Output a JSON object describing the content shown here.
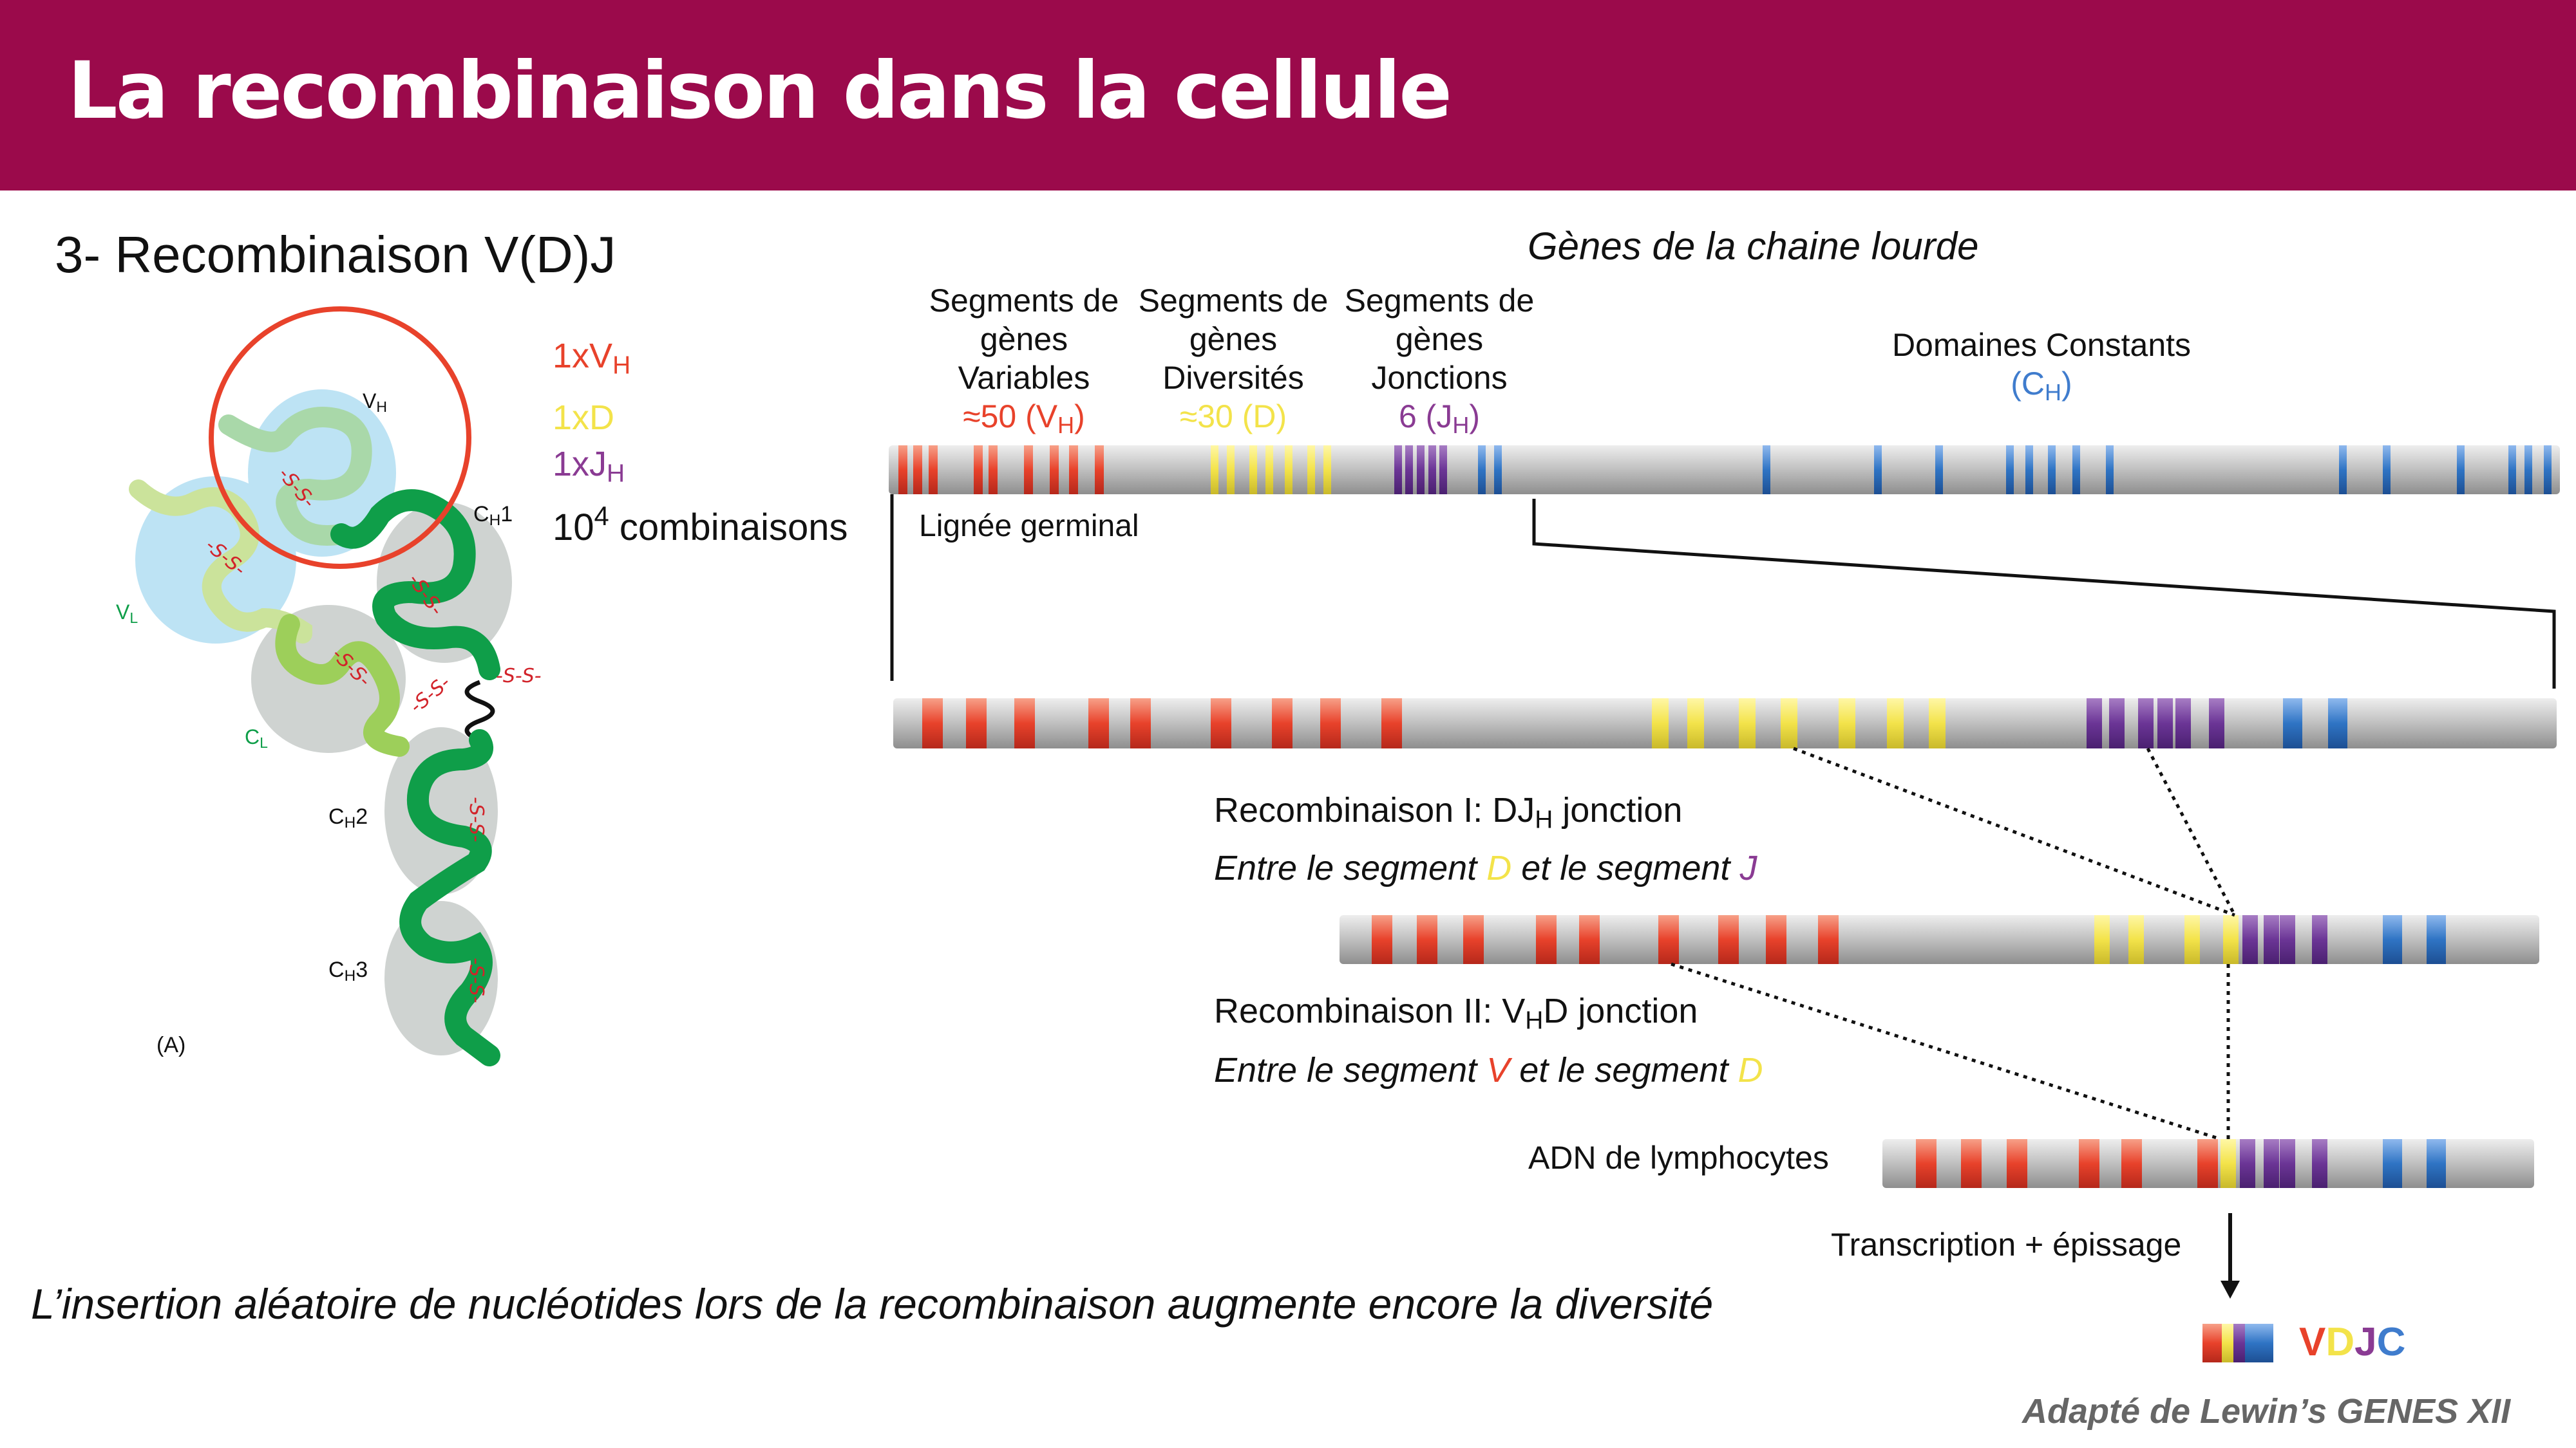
{
  "title": "La recombinaison dans la cellule",
  "subtitle": "3- Recombinaison V(D)J",
  "antibody": {
    "domains": {
      "vh": "V",
      "vh_sub": "H",
      "vl": "V",
      "vl_sub": "L",
      "cl": "C",
      "cl_sub": "L",
      "ch1": "C",
      "ch1_sub": "H",
      "ch1_num": "1",
      "ch2": "C",
      "ch2_sub": "H",
      "ch2_num": "2",
      "ch3": "C",
      "ch3_sub": "H",
      "ch3_num": "3"
    },
    "disulfide": "-S-S-",
    "panel": "(A)"
  },
  "counts": {
    "vh": "1xV",
    "vh_sub": "H",
    "d": "1xD",
    "jh": "1xJ",
    "jh_sub": "H",
    "combo_base": "10",
    "combo_exp": "4",
    "combo_label": " combinaisons"
  },
  "heavy_chain_title": "Gènes de la chaine lourde",
  "segments": {
    "variable": {
      "l1": "Segments de",
      "l2": "gènes",
      "l3": "Variables",
      "count": "≈50 (V",
      "count_sub": "H",
      "count_end": ")"
    },
    "diversity": {
      "l1": "Segments de",
      "l2": "gènes",
      "l3": "Diversités",
      "count": "≈30 (D)"
    },
    "junction": {
      "l1": "Segments de",
      "l2": "gènes",
      "l3": "Jonctions",
      "count": "6 (J",
      "count_sub": "H",
      "count_end": ")"
    },
    "constant": {
      "l1": "Domaines Constants",
      "count": "(C",
      "count_sub": "H",
      "count_end": ")"
    }
  },
  "germline_label": "Lignée germinal",
  "recomb1": {
    "title": "Recombinaison I: DJ",
    "title_sub": "H",
    "title_end": " jonction",
    "desc_a": "Entre le segment ",
    "desc_d": "D",
    "desc_b": " et le segment ",
    "desc_j": "J"
  },
  "recomb2": {
    "title": "Recombinaison II: V",
    "title_sub": "H",
    "title_end": "D jonction",
    "desc_a": "Entre le segment ",
    "desc_v": "V",
    "desc_b": " et le segment ",
    "desc_d": "D"
  },
  "lymphocyte_label": "ADN de lymphocytes",
  "transcription_label": "Transcription + épissage",
  "vdjc": {
    "v": "V",
    "d": "D",
    "j": "J",
    "c": "C"
  },
  "footnote": "L’insertion aléatoire de nucléotides lors de la recombinaison augmente encore la diversité",
  "credit": "Adapté de Lewin’s GENES XII",
  "colors": {
    "banner": "#9b0a4b",
    "v": "#e8422b",
    "d": "#f3e34a",
    "j": "#6b3596",
    "c": "#2f74c4",
    "chain_dark": "#0f9e49",
    "chain_light": "#9dcf5a"
  }
}
